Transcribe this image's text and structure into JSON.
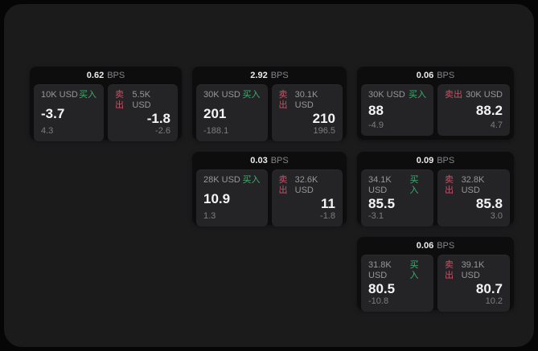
{
  "colors": {
    "buy_accent": "#3fae6d",
    "sell_accent": "#cb4f66",
    "window_bg": "#1b1b1c",
    "card_bg": "#0d0d0e",
    "panel_bg": "#242426"
  },
  "bps_unit_label": "BPS",
  "buy_tag_label": "买入",
  "sell_tag_label": "卖出",
  "cards": [
    {
      "bps_value": "0.62",
      "bps_unit": "BPS",
      "buy": {
        "amount": "10K USD",
        "tag": "买入",
        "price": "-3.7",
        "delta": "4.3"
      },
      "sell": {
        "amount": "5.5K USD",
        "tag": "卖出",
        "price": "-1.8",
        "delta": "-2.6"
      }
    },
    {
      "bps_value": "2.92",
      "bps_unit": "BPS",
      "buy": {
        "amount": "30K USD",
        "tag": "买入",
        "price": "201",
        "delta": "-188.1"
      },
      "sell": {
        "amount": "30.1K USD",
        "tag": "卖出",
        "price": "210",
        "delta": "196.5"
      }
    },
    {
      "bps_value": "0.06",
      "bps_unit": "BPS",
      "buy": {
        "amount": "30K USD",
        "tag": "买入",
        "price": "88",
        "delta": "-4.9"
      },
      "sell": {
        "amount": "30K USD",
        "tag": "卖出",
        "price": "88.2",
        "delta": "4.7"
      }
    },
    {
      "bps_value": "0.03",
      "bps_unit": "BPS",
      "buy": {
        "amount": "28K USD",
        "tag": "买入",
        "price": "10.9",
        "delta": "1.3"
      },
      "sell": {
        "amount": "32.6K USD",
        "tag": "卖出",
        "price": "11",
        "delta": "-1.8"
      }
    },
    {
      "bps_value": "0.09",
      "bps_unit": "BPS",
      "buy": {
        "amount": "34.1K USD",
        "tag": "买入",
        "price": "85.5",
        "delta": "-3.1"
      },
      "sell": {
        "amount": "32.8K USD",
        "tag": "卖出",
        "price": "85.8",
        "delta": "3.0"
      }
    },
    {
      "bps_value": "0.06",
      "bps_unit": "BPS",
      "buy": {
        "amount": "31.8K USD",
        "tag": "买入",
        "price": "80.5",
        "delta": "-10.8"
      },
      "sell": {
        "amount": "39.1K USD",
        "tag": "卖出",
        "price": "80.7",
        "delta": "10.2"
      }
    }
  ]
}
